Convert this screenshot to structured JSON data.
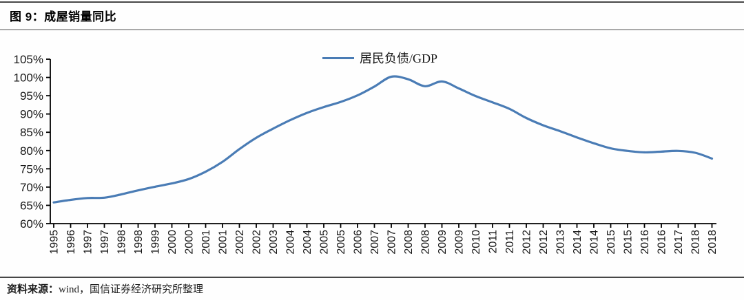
{
  "header": {
    "title": "图 9：成屋销量同比"
  },
  "footer": {
    "source_label": "资料来源：",
    "source_text": "wind，国信证券经济研究所整理"
  },
  "chart_data": {
    "type": "line",
    "title": "图 9：成屋销量同比",
    "legend_entries": [
      "居民负债/GDP"
    ],
    "legend_position": "top-center",
    "grid": false,
    "xlabel": "",
    "ylabel": "",
    "unit": "percent",
    "line_color": "#4a7cb5",
    "axis_color": "#000000",
    "label_color": "#161616",
    "y_axis": {
      "min": 60,
      "max": 105,
      "step": 5,
      "tick_labels_top_to_bottom": [
        "105%",
        "100%",
        "95%",
        "90%",
        "85%",
        "80%",
        "75%",
        "70%",
        "65%",
        "60%"
      ]
    },
    "x_categories": [
      "1995",
      "1996",
      "1997",
      "1997",
      "1998",
      "1998",
      "1999",
      "2000",
      "2000",
      "2001",
      "2001",
      "2002",
      "2002",
      "2003",
      "2004",
      "2004",
      "2005",
      "2005",
      "2006",
      "2007",
      "2007",
      "2008",
      "2008",
      "2009",
      "2009",
      "2010",
      "2011",
      "2011",
      "2012",
      "2012",
      "2013",
      "2014",
      "2014",
      "2015",
      "2015",
      "2016",
      "2016",
      "2017",
      "2018",
      "2018"
    ],
    "series": [
      {
        "name": "居民负债/GDP",
        "color": "#4a7cb5",
        "values": [
          65.8,
          66.5,
          67.0,
          67.1,
          68.0,
          69.1,
          70.1,
          71.0,
          72.2,
          74.2,
          76.9,
          80.4,
          83.5,
          86.0,
          88.3,
          90.3,
          91.9,
          93.3,
          95.1,
          97.5,
          100.2,
          99.5,
          97.6,
          98.9,
          97.0,
          94.9,
          93.2,
          91.4,
          88.9,
          86.9,
          85.3,
          83.6,
          82.0,
          80.6,
          79.9,
          79.5,
          79.7,
          79.9,
          79.4,
          77.8
        ]
      }
    ]
  }
}
